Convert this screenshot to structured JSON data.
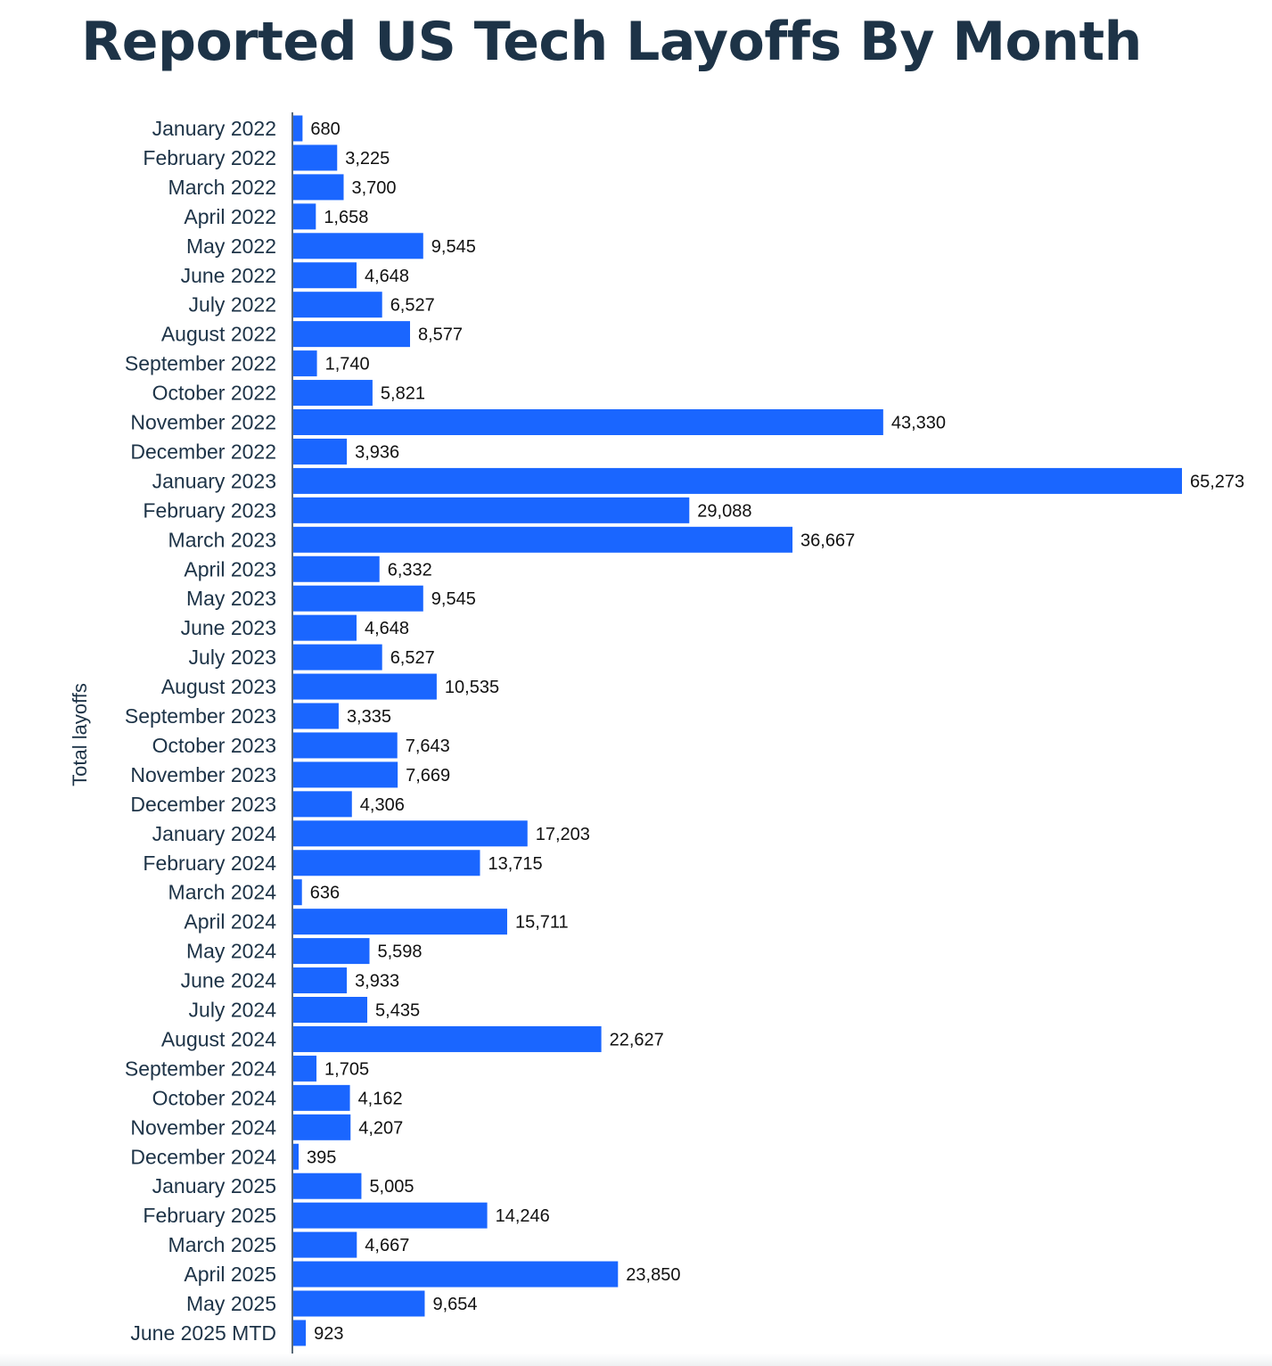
{
  "colors": {
    "bar": "#1a66ff",
    "text": "#1d3347",
    "value_text": "#111111",
    "axis": "#5a6a78"
  },
  "chart_data": {
    "type": "bar",
    "orientation": "horizontal",
    "title": "Reported US Tech Layoffs By Month",
    "xlabel": "",
    "ylabel": "Total layoffs",
    "xlim": [
      0,
      65273
    ],
    "categories": [
      "January 2022",
      "February 2022",
      "March 2022",
      "April 2022",
      "May 2022",
      "June 2022",
      "July 2022",
      "August 2022",
      "September 2022",
      "October 2022",
      "November 2022",
      "December 2022",
      "January 2023",
      "February 2023",
      "March 2023",
      "April 2023",
      "May 2023",
      "June 2023",
      "July 2023",
      "August 2023",
      "September 2023",
      "October 2023",
      "November 2023",
      "December 2023",
      "January 2024",
      "February 2024",
      "March 2024",
      "April 2024",
      "May 2024",
      "June 2024",
      "July 2024",
      "August 2024",
      "September 2024",
      "October 2024",
      "November 2024",
      "December 2024",
      "January 2025",
      "February 2025",
      "March 2025",
      "April 2025",
      "May 2025",
      "June 2025 MTD"
    ],
    "values": [
      680,
      3225,
      3700,
      1658,
      9545,
      4648,
      6527,
      8577,
      1740,
      5821,
      43330,
      3936,
      65273,
      29088,
      36667,
      6332,
      9545,
      4648,
      6527,
      10535,
      3335,
      7643,
      7669,
      4306,
      17203,
      13715,
      636,
      15711,
      5598,
      3933,
      5435,
      22627,
      1705,
      4162,
      4207,
      395,
      5005,
      14246,
      4667,
      23850,
      9654,
      923
    ],
    "value_labels": [
      "680",
      "3,225",
      "3,700",
      "1,658",
      "9,545",
      "4,648",
      "6,527",
      "8,577",
      "1,740",
      "5,821",
      "43,330",
      "3,936",
      "65,273",
      "29,088",
      "36,667",
      "6,332",
      "9,545",
      "4,648",
      "6,527",
      "10,535",
      "3,335",
      "7,643",
      "7,669",
      "4,306",
      "17,203",
      "13,715",
      "636",
      "15,711",
      "5,598",
      "3,933",
      "5,435",
      "22,627",
      "1,705",
      "4,162",
      "4,207",
      "395",
      "5,005",
      "14,246",
      "4,667",
      "23,850",
      "9,654",
      "923"
    ],
    "grid": false,
    "legend": "none"
  }
}
